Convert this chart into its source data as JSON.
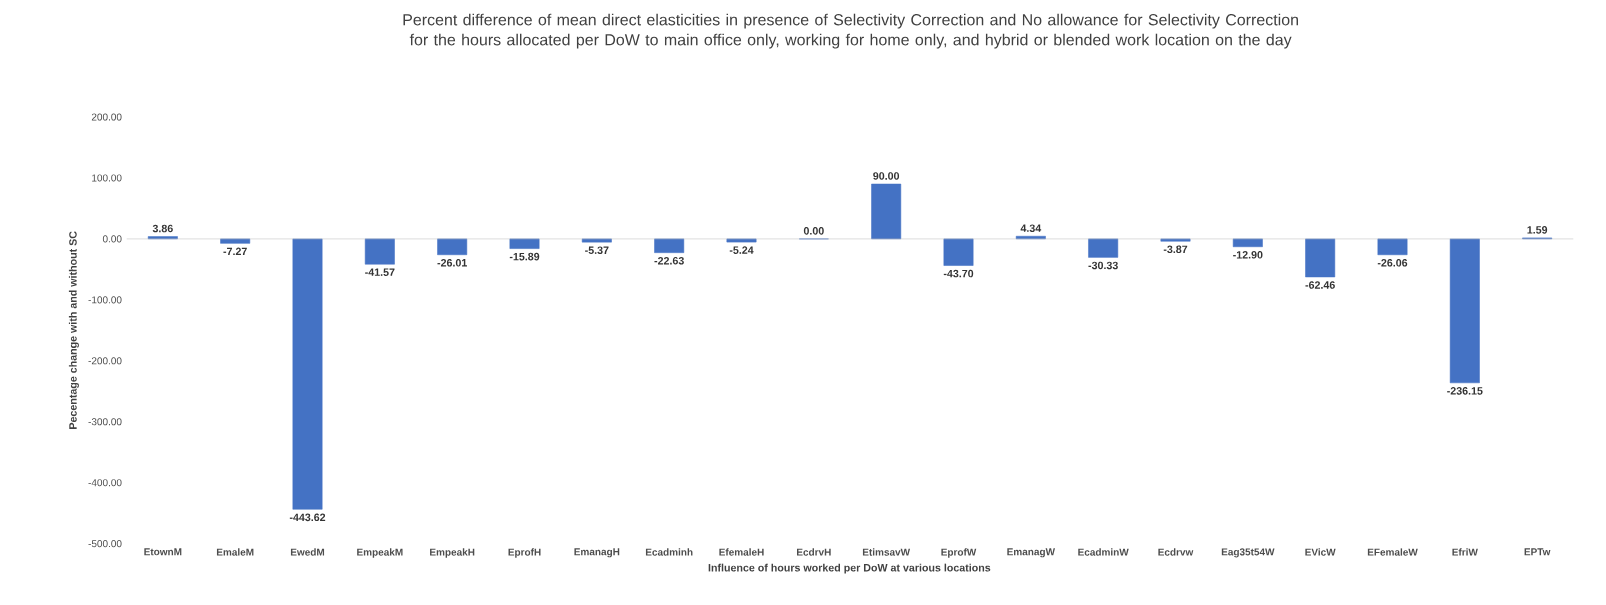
{
  "chart_data": {
    "type": "bar",
    "title": "Percent difference of mean direct elasticities in presence of Selectivity Correction and No allowance for Selectivity Correction for the hours allocated per DoW to main office only, working for home only, and hybrid or blended work location on the day",
    "xlabel": "Influence of hours worked per DoW at various locations",
    "ylabel": "Pecentage change with and without SC",
    "categories": [
      "EtownM",
      "EmaleM",
      "EwedM",
      "EmpeakM",
      "EmpeakH",
      "EprofH",
      "EmanagH",
      "Ecadminh",
      "EfemaleH",
      "EcdrvH",
      "EtimsavW",
      "EprofW",
      "EmanagW",
      "EcadminW",
      "Ecdrvw",
      "Eag35t54W",
      "EVicW",
      "EFemaleW",
      "EfriW",
      "EPTw"
    ],
    "values": [
      3.86,
      -7.27,
      -443.62,
      -41.57,
      -26.01,
      -15.89,
      -5.37,
      -22.63,
      -5.24,
      0.0,
      90.0,
      -43.7,
      4.34,
      -30.33,
      -3.87,
      -12.9,
      -62.46,
      -26.06,
      -236.15,
      1.59
    ],
    "value_labels": [
      "3.86",
      "-7.27",
      "-443.62",
      "-41.57",
      "-26.01",
      "-15.89",
      "-5.37",
      "-22.63",
      "-5.24",
      "0.00",
      "90.00",
      "-43.70",
      "4.34",
      "-30.33",
      "-3.87",
      "-12.90",
      "-62.46",
      "-26.06",
      "-236.15",
      "1.59"
    ],
    "color": "#4472c4",
    "ylim": [
      -500,
      200
    ],
    "yticks": [
      {
        "value": -500,
        "label": "-500.00"
      },
      {
        "value": -400,
        "label": "-400.00"
      },
      {
        "value": -300,
        "label": "-300.00"
      },
      {
        "value": -200,
        "label": "-200.00"
      },
      {
        "value": -100,
        "label": "-100.00"
      },
      {
        "value": 0,
        "label": "0.00"
      },
      {
        "value": 100,
        "label": "100.00"
      },
      {
        "value": 200,
        "label": "200.00"
      }
    ]
  }
}
